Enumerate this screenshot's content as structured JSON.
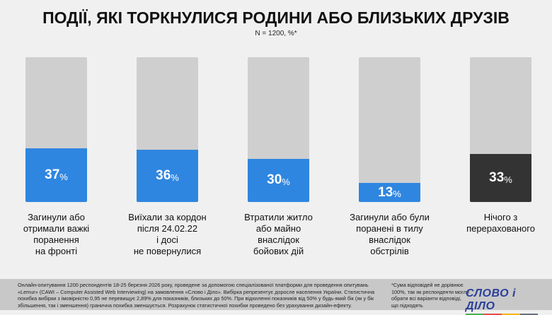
{
  "chart_data": {
    "type": "bar",
    "title": "ПОДІЇ, ЯКІ ТОРКНУЛИСЯ РОДИНИ АБО БЛИЗЬКИХ ДРУЗІВ",
    "subtitle": "N = 1200, %*",
    "unit": "%",
    "ylim": [
      0,
      100
    ],
    "categories": [
      "Загинули або отримали важкі поранення на фронті",
      "Виїхали за кордон після 24.02.22 і досі не повернулися",
      "Втратили житло або майно внаслідок бойових дій",
      "Загинули або були поранені в тилу внаслідок обстрілів",
      "Нічого з перерахованого"
    ],
    "label_lines": [
      [
        "Загинули або",
        "отримали важкі",
        "поранення",
        "на фронті"
      ],
      [
        "Виїхали за кордон",
        "після 24.02.22",
        "і досі",
        "не повернулися"
      ],
      [
        "Втратили житло",
        "або майно",
        "внаслідок",
        "бойових дій"
      ],
      [
        "Загинули або були",
        "поранені в тилу",
        "внаслідок",
        "обстрілів"
      ],
      [
        "Нічого з",
        "перерахованого"
      ]
    ],
    "values": [
      37,
      36,
      30,
      13,
      33
    ],
    "colors": [
      "#2f86e0",
      "#2f86e0",
      "#2f86e0",
      "#2f86e0",
      "#333333"
    ],
    "track_color": "#cfcfcf"
  },
  "footer": {
    "note": "Онлайн-опитування 1200 респондентів 18-25 березня 2026 року, проведене за допомогою спеціалізованої платформи для проведення опитувань «Lemur» (CAWI – Computer Assisted Web Interviewing) на замовлення «Слово і Діло». Вибірка репрезентує доросле населення України. Статистична похибка вибірки з імовірністю 0,95 не перевищує 2,89% для показників, близьких до 50%. При відхиленні показників від 50% у будь-який бік (як у бік збільшення, так і зменшення) гранична похибка зменшується. Розрахунок статистичної похибки проведено без урахування дизайн-ефекту.",
    "asterisk_note": "*Сума відповідей не дорівнює 100%, так як респонденти могли обрати всі варіанти відповіді, що підходять",
    "logo": "СЛОВО і ДІЛО"
  }
}
